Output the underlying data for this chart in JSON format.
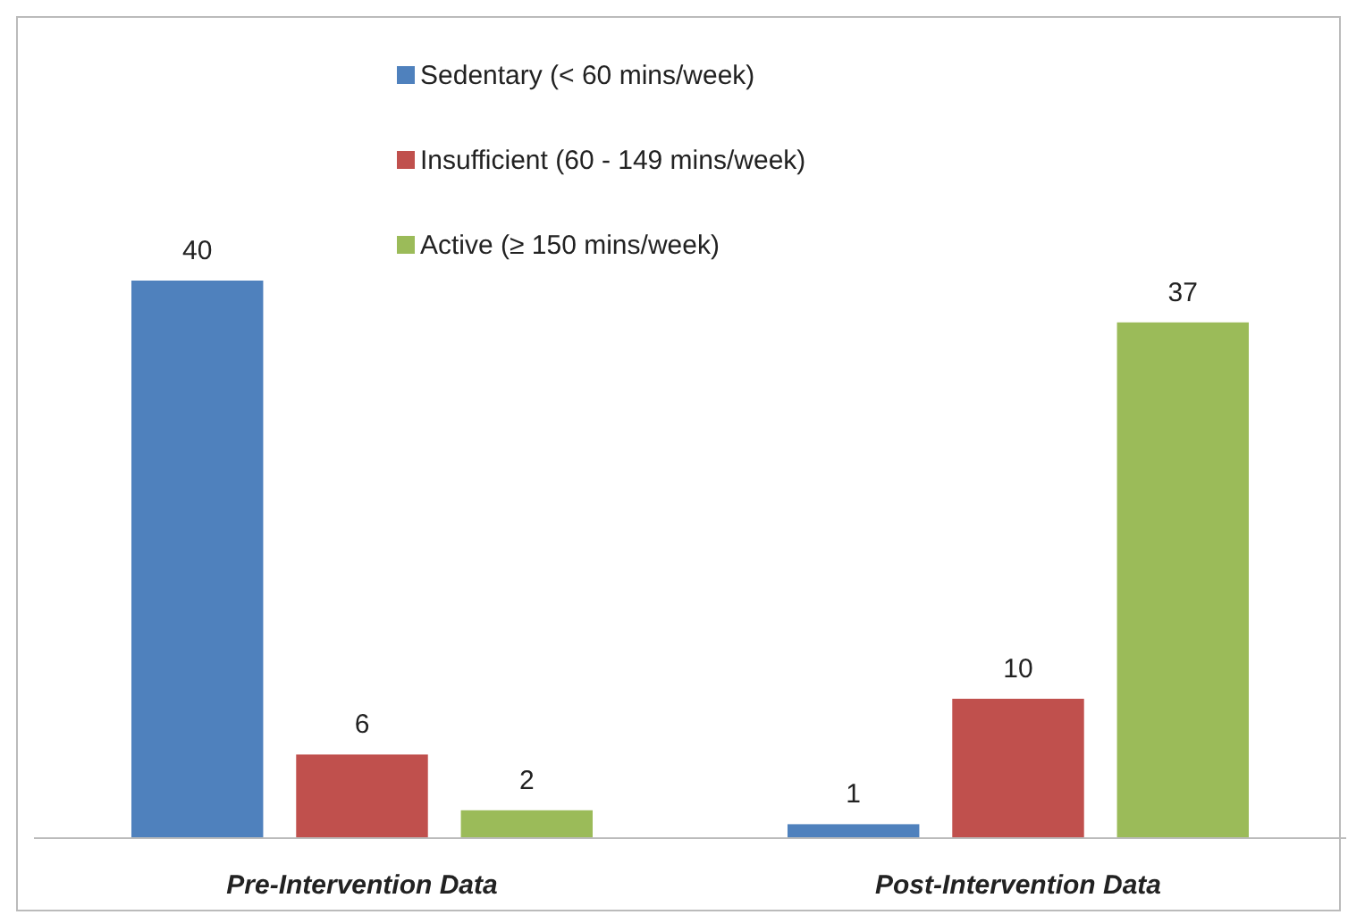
{
  "chart_data": {
    "type": "bar",
    "categories": [
      "Pre-Intervention Data",
      "Post-Intervention Data"
    ],
    "series": [
      {
        "name": "Sedentary (< 60 mins/week)",
        "color": "#4f81bd",
        "values": [
          40,
          1
        ]
      },
      {
        "name": "Insufficient (60 - 149 mins/week)",
        "color": "#c0504d",
        "values": [
          6,
          10
        ]
      },
      {
        "name": "Active (≥ 150 mins/week)",
        "color": "#9bbb59",
        "values": [
          2,
          37
        ]
      }
    ],
    "data_labels": true,
    "legend": "top",
    "grid": false
  }
}
